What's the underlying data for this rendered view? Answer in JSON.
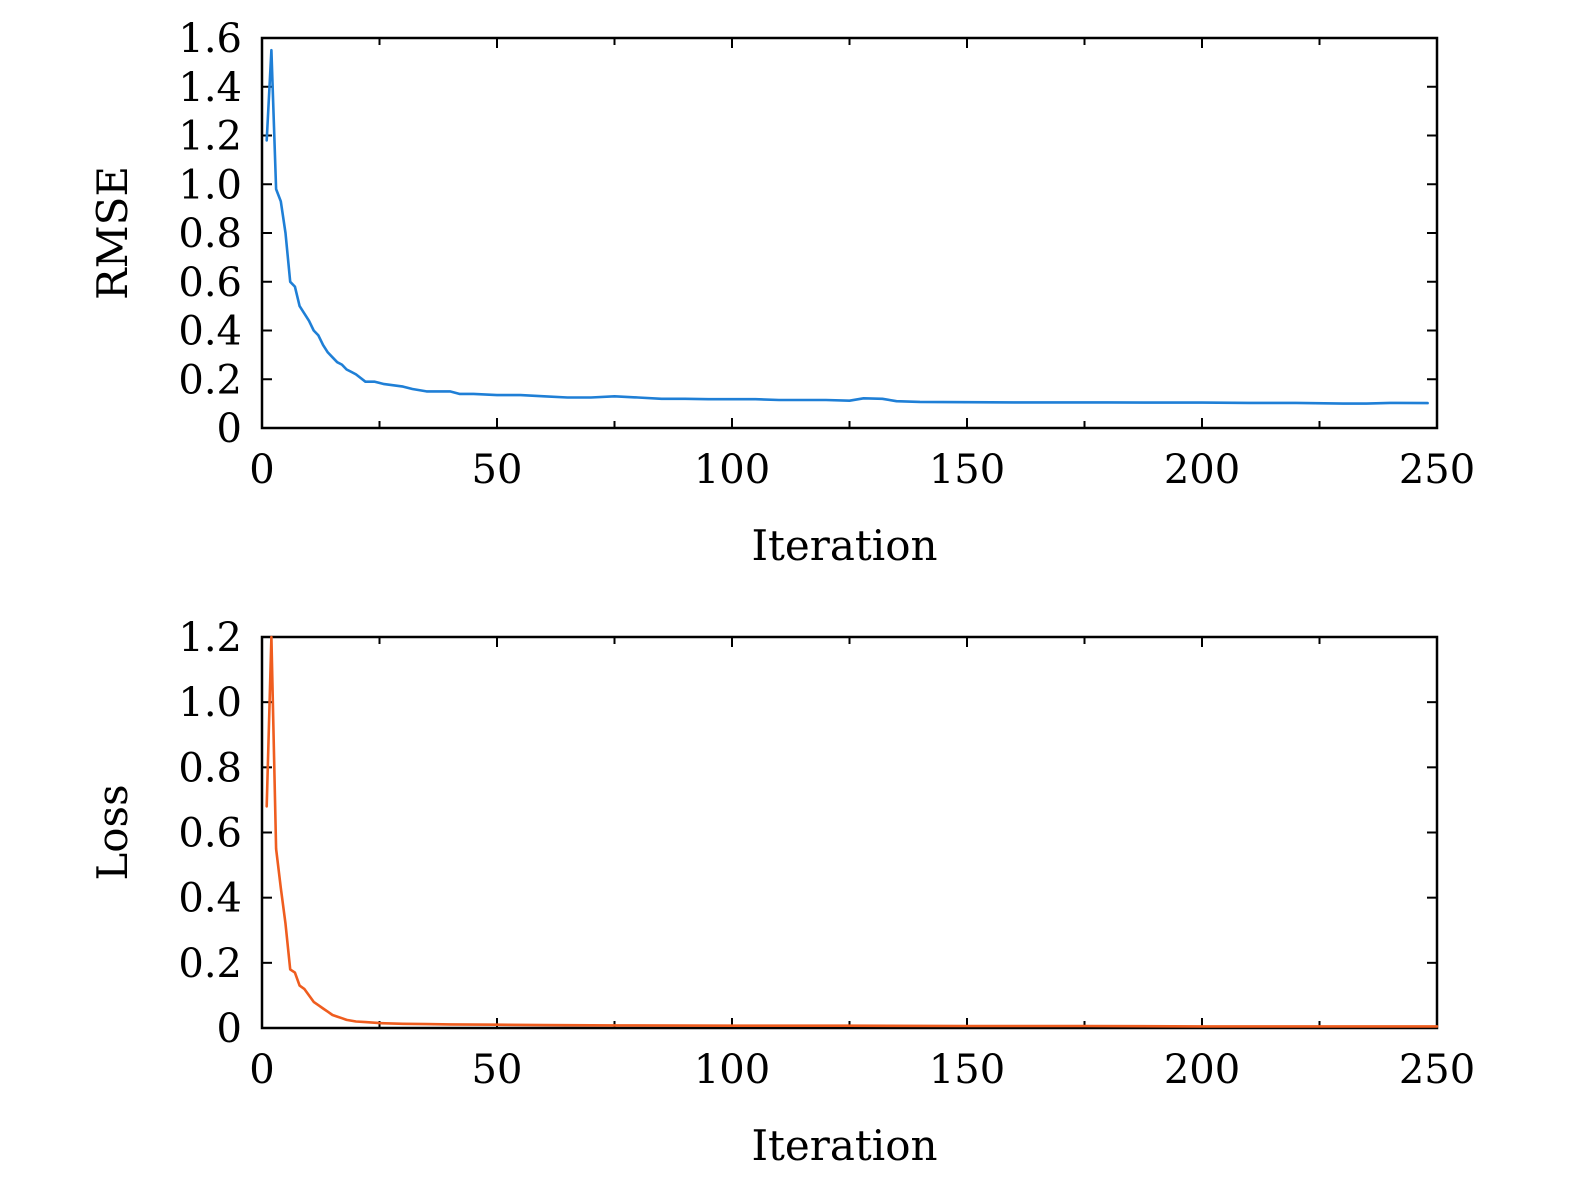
{
  "chart_data": [
    {
      "type": "line",
      "xlabel": "Iteration",
      "ylabel": "RMSE",
      "xlim": [
        0,
        250
      ],
      "ylim": [
        0,
        1.6
      ],
      "xticks": [
        0,
        50,
        100,
        150,
        200,
        250
      ],
      "xtick_labels": [
        "0",
        "50",
        "100",
        "150",
        "200",
        "250"
      ],
      "yticks": [
        0,
        0.2,
        0.4,
        0.6,
        0.8,
        1.0,
        1.2,
        1.4,
        1.6
      ],
      "ytick_labels": [
        "0",
        "0.2",
        "0.4",
        "0.6",
        "0.8",
        "1.0",
        "1.2",
        "1.4",
        "1.6"
      ],
      "grid": false,
      "color": "#1f7fd6",
      "series": [
        {
          "x": [
            1,
            2,
            3,
            4,
            5,
            6,
            7,
            8,
            9,
            10,
            11,
            12,
            13,
            14,
            15,
            16,
            17,
            18,
            19,
            20,
            22,
            24,
            26,
            28,
            30,
            32,
            35,
            38,
            40,
            42,
            45,
            50,
            55,
            60,
            65,
            70,
            75,
            80,
            85,
            90,
            95,
            100,
            105,
            110,
            115,
            120,
            125,
            128,
            132,
            135,
            140,
            150,
            160,
            170,
            180,
            190,
            200,
            210,
            220,
            230,
            235,
            240,
            248
          ],
          "y": [
            1.18,
            1.55,
            0.98,
            0.93,
            0.8,
            0.6,
            0.58,
            0.5,
            0.47,
            0.44,
            0.4,
            0.38,
            0.34,
            0.31,
            0.29,
            0.27,
            0.26,
            0.24,
            0.23,
            0.22,
            0.19,
            0.19,
            0.18,
            0.175,
            0.17,
            0.16,
            0.15,
            0.15,
            0.15,
            0.14,
            0.14,
            0.135,
            0.135,
            0.13,
            0.125,
            0.125,
            0.13,
            0.125,
            0.12,
            0.12,
            0.118,
            0.118,
            0.118,
            0.115,
            0.115,
            0.115,
            0.112,
            0.122,
            0.12,
            0.11,
            0.107,
            0.106,
            0.105,
            0.105,
            0.105,
            0.104,
            0.104,
            0.103,
            0.103,
            0.1,
            0.1,
            0.103,
            0.102
          ]
        }
      ]
    },
    {
      "type": "line",
      "xlabel": "Iteration",
      "ylabel": "Loss",
      "xlim": [
        0,
        250
      ],
      "ylim": [
        0,
        1.2
      ],
      "xticks": [
        0,
        50,
        100,
        150,
        200,
        250
      ],
      "xtick_labels": [
        "0",
        "50",
        "100",
        "150",
        "200",
        "250"
      ],
      "yticks": [
        0,
        0.2,
        0.4,
        0.6,
        0.8,
        1.0,
        1.2
      ],
      "ytick_labels": [
        "0",
        "0.2",
        "0.4",
        "0.6",
        "0.8",
        "1.0",
        "1.2"
      ],
      "grid": false,
      "color": "#ef5d1f",
      "series": [
        {
          "x": [
            1,
            2,
            3,
            4,
            5,
            6,
            7,
            8,
            9,
            10,
            11,
            12,
            13,
            14,
            15,
            16,
            17,
            18,
            20,
            22,
            25,
            30,
            35,
            40,
            50,
            60,
            75,
            100,
            125,
            150,
            175,
            200,
            225,
            250
          ],
          "y": [
            0.68,
            1.2,
            0.55,
            0.43,
            0.32,
            0.18,
            0.17,
            0.13,
            0.12,
            0.1,
            0.08,
            0.07,
            0.06,
            0.05,
            0.04,
            0.035,
            0.03,
            0.025,
            0.02,
            0.018,
            0.015,
            0.013,
            0.012,
            0.011,
            0.01,
            0.009,
            0.008,
            0.007,
            0.007,
            0.006,
            0.006,
            0.005,
            0.005,
            0.005
          ]
        }
      ]
    }
  ]
}
